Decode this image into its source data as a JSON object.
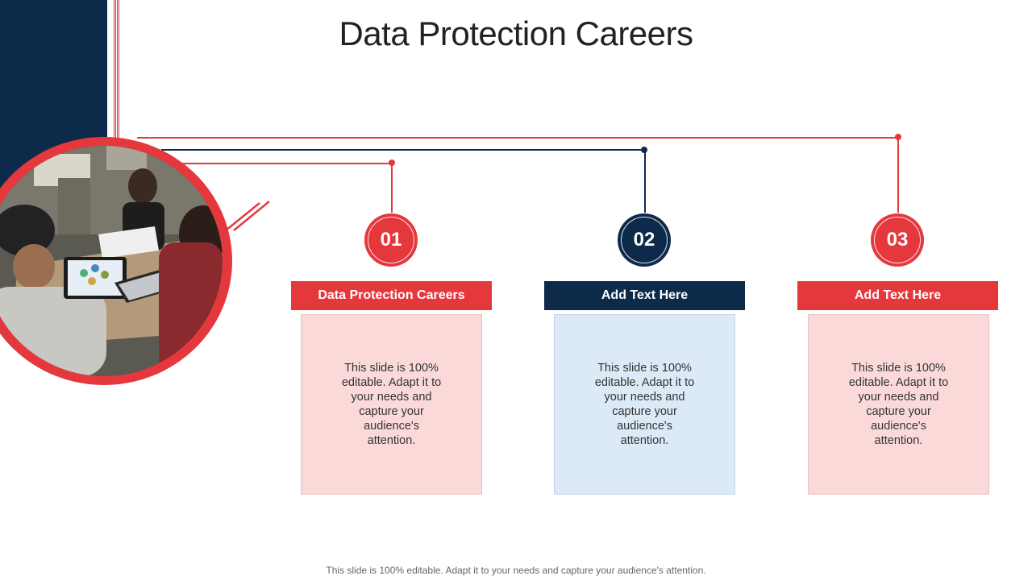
{
  "title": "Data Protection Careers",
  "colors": {
    "navy": "#0e2a4b",
    "red": "#e5383d",
    "pink": "#fbd9d9",
    "blue": "#dceaf8"
  },
  "items": [
    {
      "number": "01",
      "label": "Data Protection Careers",
      "body": "This slide is 100% editable. Adapt it to your needs and capture your audience's attention."
    },
    {
      "number": "02",
      "label": "Add Text Here",
      "body": "This slide is 100% editable. Adapt it to your needs and capture your audience's attention."
    },
    {
      "number": "03",
      "label": "Add Text Here",
      "body": "This slide is 100% editable. Adapt it to your needs and capture your audience's attention."
    }
  ],
  "footer": "This slide is 100% editable. Adapt it to your needs and capture your audience's attention."
}
